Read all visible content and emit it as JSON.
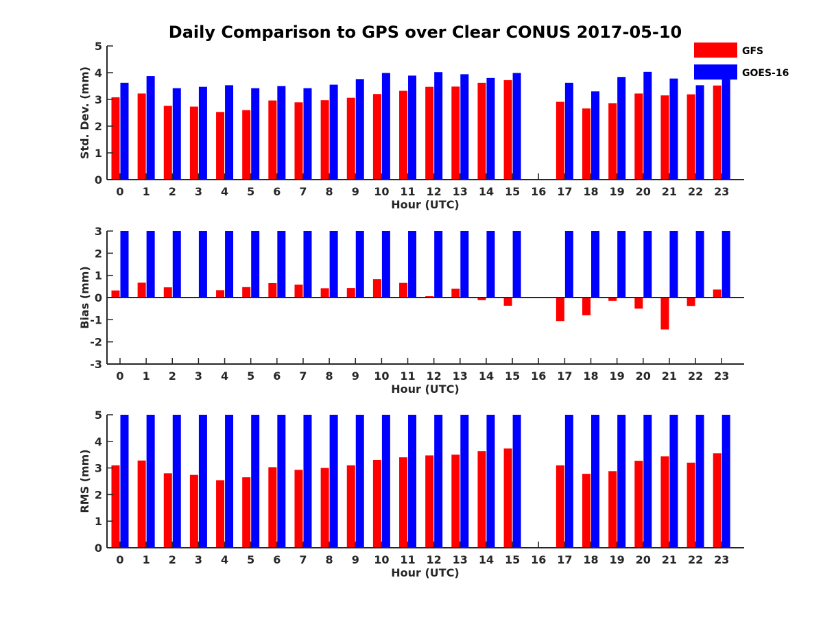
{
  "chart_data": {
    "title": "Daily Comparison to GPS over Clear CONUS 2017-05-10",
    "legend": {
      "placement": "top-right",
      "entries": [
        {
          "name": "GFS",
          "color": "#ff0000"
        },
        {
          "name": "GOES-16",
          "color": "#0000ff"
        }
      ]
    },
    "panels": [
      {
        "type": "bar",
        "ylabel": "Std. Dev. (mm)",
        "xlabel": "Hour (UTC)",
        "ylim": [
          0,
          5
        ],
        "yticks": [
          0,
          1,
          2,
          3,
          4,
          5
        ],
        "categories": [
          "0",
          "1",
          "2",
          "3",
          "4",
          "5",
          "6",
          "7",
          "8",
          "9",
          "10",
          "11",
          "12",
          "13",
          "14",
          "15",
          "16",
          "17",
          "18",
          "19",
          "20",
          "21",
          "22",
          "23"
        ],
        "series": [
          {
            "name": "GFS",
            "color": "#ff0000",
            "values": [
              3.08,
              3.22,
              2.76,
              2.73,
              2.53,
              2.6,
              2.96,
              2.89,
              2.97,
              3.06,
              3.2,
              3.32,
              3.47,
              3.48,
              3.62,
              3.72,
              null,
              2.91,
              2.66,
              2.86,
              3.22,
              3.15,
              3.19,
              3.52
            ]
          },
          {
            "name": "GOES-16",
            "color": "#0000ff",
            "values": [
              3.62,
              3.87,
              3.42,
              3.47,
              3.53,
              3.42,
              3.5,
              3.42,
              3.55,
              3.76,
              3.99,
              3.89,
              4.02,
              3.94,
              3.8,
              3.99,
              null,
              3.62,
              3.3,
              3.84,
              4.03,
              3.78,
              3.53,
              3.9
            ]
          }
        ]
      },
      {
        "type": "bar",
        "ylabel": "Bias (mm)",
        "xlabel": "Hour (UTC)",
        "ylim": [
          -3,
          3
        ],
        "yticks": [
          -3,
          -2,
          -1,
          0,
          1,
          2,
          3
        ],
        "categories": [
          "0",
          "1",
          "2",
          "3",
          "4",
          "5",
          "6",
          "7",
          "8",
          "9",
          "10",
          "11",
          "12",
          "13",
          "14",
          "15",
          "16",
          "17",
          "18",
          "19",
          "20",
          "21",
          "22",
          "23"
        ],
        "series": [
          {
            "name": "GFS",
            "color": "#ff0000",
            "values": [
              0.32,
              0.67,
              0.46,
              0.03,
              0.33,
              0.47,
              0.65,
              0.58,
              0.42,
              0.43,
              0.83,
              0.66,
              0.06,
              0.4,
              -0.12,
              -0.37,
              null,
              -1.06,
              -0.8,
              -0.15,
              -0.5,
              -1.44,
              -0.38,
              0.36
            ]
          },
          {
            "name": "GOES-16",
            "color": "#0000ff",
            "values": [
              3,
              3,
              3,
              3,
              3,
              3,
              3,
              3,
              3,
              3,
              3,
              3,
              3,
              3,
              3,
              3,
              null,
              3,
              3,
              3,
              3,
              3,
              3,
              3
            ]
          }
        ]
      },
      {
        "type": "bar",
        "ylabel": "RMS (mm)",
        "xlabel": "Hour (UTC)",
        "ylim": [
          0,
          5
        ],
        "yticks": [
          0,
          1,
          2,
          3,
          4,
          5
        ],
        "categories": [
          "0",
          "1",
          "2",
          "3",
          "4",
          "5",
          "6",
          "7",
          "8",
          "9",
          "10",
          "11",
          "12",
          "13",
          "14",
          "15",
          "16",
          "17",
          "18",
          "19",
          "20",
          "21",
          "22",
          "23"
        ],
        "series": [
          {
            "name": "GFS",
            "color": "#ff0000",
            "values": [
              3.1,
              3.28,
              2.8,
              2.74,
              2.54,
              2.65,
              3.03,
              2.93,
              3.0,
              3.1,
              3.3,
              3.4,
              3.47,
              3.5,
              3.63,
              3.73,
              null,
              3.1,
              2.78,
              2.88,
              3.27,
              3.44,
              3.2,
              3.55
            ]
          },
          {
            "name": "GOES-16",
            "color": "#0000ff",
            "values": [
              5,
              5,
              5,
              5,
              5,
              5,
              5,
              5,
              5,
              5,
              5,
              5,
              5,
              5,
              5,
              5,
              null,
              5,
              5,
              5,
              5,
              5,
              5,
              5
            ]
          }
        ]
      }
    ]
  }
}
